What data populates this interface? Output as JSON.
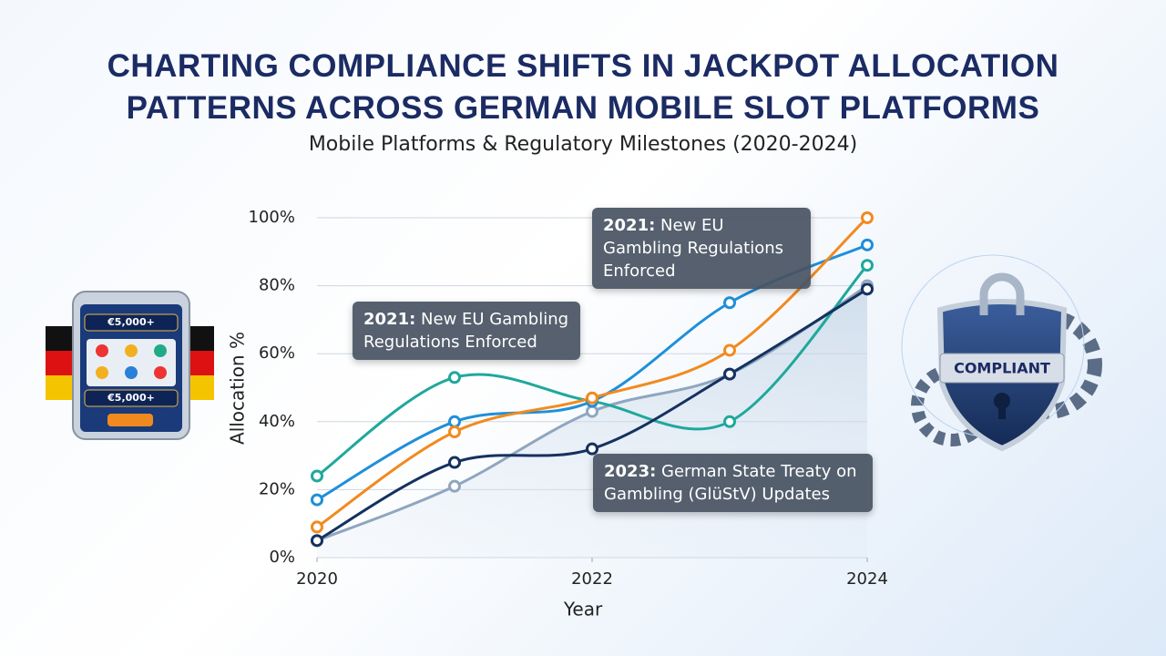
{
  "chart_data": {
    "type": "line",
    "title": "CHARTING COMPLIANCE SHIFTS IN JACKPOT ALLOCATION PATTERNS ACROSS GERMAN MOBILE SLOT PLATFORMS",
    "subtitle": "Mobile Platforms & Regulatory Milestones (2020-2024)",
    "x_label": "Year",
    "y_label": "Allocation %",
    "x": [
      2020,
      2021,
      2022,
      2023,
      2024
    ],
    "xlim": [
      2020,
      2024
    ],
    "xticks": [
      2020,
      2022,
      2024
    ],
    "ylim": [
      0,
      100
    ],
    "yticks": [
      {
        "value": 0,
        "label": "0%"
      },
      {
        "value": 20,
        "label": "20%"
      },
      {
        "value": 40,
        "label": "40%"
      },
      {
        "value": 60,
        "label": "60%"
      },
      {
        "value": 80,
        "label": "80%"
      },
      {
        "value": 100,
        "label": "100%"
      }
    ],
    "grid": true,
    "series": [
      {
        "color": "#8fa6bf",
        "values": [
          5,
          21,
          43,
          54,
          80
        ]
      },
      {
        "color": "#1fa89c",
        "values": [
          24,
          53,
          46,
          40,
          86
        ]
      },
      {
        "color": "#1f8fd8",
        "values": [
          17,
          40,
          46,
          75,
          92
        ]
      },
      {
        "color": "#f28a1e",
        "values": [
          9,
          37,
          47,
          61,
          100
        ]
      },
      {
        "color": "#15315f",
        "values": [
          5,
          28,
          32,
          54,
          79
        ]
      }
    ],
    "annotations": [
      {
        "label": "2021:",
        "text": "New EU Gambling Regulations Enforced"
      },
      {
        "label": "2021:",
        "text": "New EU Gambling Regulations Enforced"
      },
      {
        "label": "2023:",
        "text": "German State Treaty on Gambling (GlüStV) Updates"
      }
    ],
    "illustration_labels": [
      "€5,000+",
      "€5,000+",
      "COMPLIANT"
    ]
  }
}
